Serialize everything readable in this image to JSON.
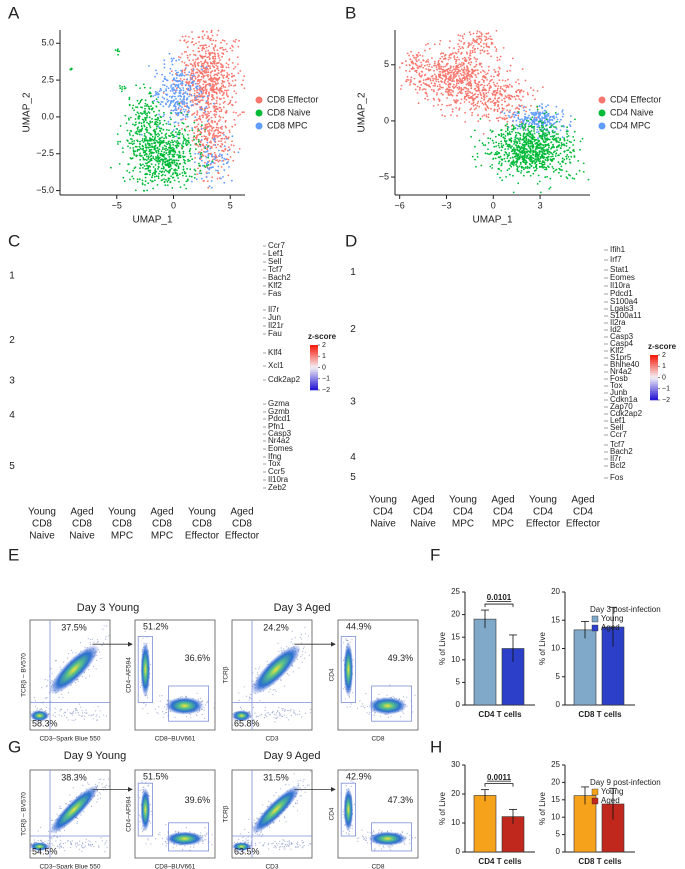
{
  "panel_labels": [
    "A",
    "B",
    "C",
    "D",
    "E",
    "F",
    "G",
    "H"
  ],
  "umap": [
    {
      "type": "scatter",
      "x_label": "UMAP_1",
      "y_label": "UMAP_2",
      "xlim": [
        -10,
        6.3
      ],
      "ylim": [
        -5.3,
        5.9
      ],
      "xticks": [
        {
          "value": -5,
          "label": "−5"
        },
        0,
        5
      ],
      "yticks": [
        {
          "value": -5,
          "label": "−5.0"
        },
        {
          "value": -2.5,
          "label": "−2.5"
        },
        {
          "value": 0,
          "label": "0.0"
        },
        {
          "value": 2.5,
          "label": "2.5"
        },
        {
          "value": 5,
          "label": "5.0"
        }
      ],
      "legend": [
        {
          "name": "CD8 Effector",
          "color": "#f8766d"
        },
        {
          "name": "CD8 Naive",
          "color": "#00ba38"
        },
        {
          "name": "CD8 MPC",
          "color": "#619cff"
        }
      ]
    },
    {
      "type": "scatter",
      "x_label": "UMAP_1",
      "y_label": "UMAP_2",
      "xlim": [
        -6.3,
        6.2
      ],
      "ylim": [
        -6.6,
        8.1
      ],
      "xticks": [
        {
          "value": -6,
          "label": "−6"
        },
        {
          "value": -3,
          "label": "−3"
        },
        0,
        3
      ],
      "yticks": [
        {
          "value": -5,
          "label": "−5"
        },
        0,
        5
      ],
      "legend": [
        {
          "name": "CD4 Effector",
          "color": "#f8766d"
        },
        {
          "name": "CD4 Naive",
          "color": "#00ba38"
        },
        {
          "name": "CD4 MPC",
          "color": "#619cff"
        }
      ]
    }
  ],
  "heatmaps": [
    {
      "clusters": [
        "1",
        "2",
        "3",
        "4",
        "5"
      ],
      "genes": [
        "Ccr7",
        "Lef1",
        "Sell",
        "Tcf7",
        "Bach2",
        "Klf2",
        "Fas",
        "Il7r",
        "Jun",
        "Il21r",
        "Fau",
        "Klf4",
        "Xcl1",
        "Cdk2ap2",
        "Gzma",
        "Gzmb",
        "Pdcd1",
        "Pfn1",
        "Casp3",
        "Nr4a2",
        "Eomes",
        "Ifng",
        "Tox",
        "Ccr5",
        "Il10ra",
        "Zeb2"
      ],
      "columns": [
        [
          "Young",
          "CD8",
          "Naive"
        ],
        [
          "Aged",
          "CD8",
          "Naive"
        ],
        [
          "Young",
          "CD8",
          "MPC"
        ],
        [
          "Aged",
          "CD8",
          "MPC"
        ],
        [
          "Young",
          "CD8",
          "Effector"
        ],
        [
          "Aged",
          "CD8",
          "Effector"
        ]
      ],
      "legend_title": "z-score",
      "legend_ticks": [
        2,
        1,
        0,
        {
          "value": -1,
          "label": "−1"
        },
        {
          "value": -2,
          "label": "−2"
        }
      ]
    },
    {
      "clusters": [
        "1",
        "2",
        "3",
        "4",
        "5"
      ],
      "genes": [
        "Ifih1",
        "Irf7",
        "Stat1",
        "Eomes",
        "Il10ra",
        "Pdcd1",
        "S100a4",
        "Lgals3",
        "S100a11",
        "Il2ra",
        "Id2",
        "Casp3",
        "Casp4",
        "Klf2",
        "S1pr5",
        "Bhlhe40",
        "Nr4a2",
        "Fosb",
        "Tox",
        "Junb",
        "Cdkn1a",
        "Zap70",
        "Cdk2ap2",
        "Lef1",
        "Sell",
        "Ccr7",
        "Tcf7",
        "Bach2",
        "Il7r",
        "Bcl2",
        "Fos"
      ],
      "columns": [
        [
          "Young",
          "CD4",
          "Naive"
        ],
        [
          "Aged",
          "CD4",
          "Naive"
        ],
        [
          "Young",
          "CD4",
          "MPC"
        ],
        [
          "Aged",
          "CD4",
          "MPC"
        ],
        [
          "Young",
          "CD4",
          "Effector"
        ],
        [
          "Aged",
          "CD4",
          "Effector"
        ]
      ],
      "legend_title": "z-score",
      "legend_ticks": [
        2,
        1,
        0,
        {
          "value": -1,
          "label": "−1"
        },
        {
          "value": -2,
          "label": "−2"
        }
      ]
    }
  ],
  "flow": [
    {
      "titles": [
        "Day 3 Young",
        "Day 3 Aged"
      ],
      "plots": [
        {
          "x_label": "CD3–Spark Blue 550",
          "y_label": "TCRβ – BV570",
          "gates": [
            "37.5%",
            "58.3%"
          ]
        },
        {
          "x_label": "CD8–BUV661",
          "y_label": "CD4–AF594",
          "gates": [
            "51.2%",
            "36.6%"
          ]
        },
        {
          "x_label": "CD3",
          "y_label": "TCRβ",
          "gates": [
            "24.2%",
            "65.8%"
          ]
        },
        {
          "x_label": "CD8",
          "y_label": "CD4",
          "gates": [
            "44.9%",
            "49.3%"
          ]
        }
      ]
    },
    {
      "titles": [
        "Day 9 Young",
        "Day 9 Aged"
      ],
      "plots": [
        {
          "x_label": "CD3–Spark Blue 550",
          "y_label": "TCRβ – BV570",
          "gates": [
            "38.3%",
            "54.5%"
          ]
        },
        {
          "x_label": "CD8–BUV661",
          "y_label": "CD4–AF594",
          "gates": [
            "51.5%",
            "39.6%"
          ]
        },
        {
          "x_label": "CD3",
          "y_label": "TCRβ",
          "gates": [
            "31.5%",
            "63.5%"
          ]
        },
        {
          "x_label": "CD8",
          "y_label": "CD4",
          "gates": [
            "42.9%",
            "47.3%"
          ]
        }
      ]
    }
  ],
  "bars": [
    {
      "legend_title": "Day 3 post-infection",
      "legend": [
        {
          "name": "Young",
          "color": "#7fa8c9"
        },
        {
          "name": "Aged",
          "color": "#2c3fc8"
        }
      ],
      "charts": [
        {
          "type": "bar",
          "x_label": "CD4 T cells",
          "y_label": "% of Live",
          "values": [
            19,
            12.5
          ],
          "errors": [
            2,
            3
          ],
          "annotation": "0.0101",
          "ylim": [
            0,
            25
          ],
          "yticks": [
            0,
            5,
            10,
            15,
            20,
            25
          ]
        },
        {
          "type": "bar",
          "x_label": "CD8 T cells",
          "y_label": "% of Live",
          "values": [
            13.3,
            13.8
          ],
          "errors": [
            1.5,
            3.5
          ],
          "ylim": [
            0,
            20
          ],
          "yticks": [
            0,
            5,
            10,
            15,
            20
          ]
        }
      ]
    },
    {
      "legend_title": "Day 9 post-infection",
      "legend": [
        {
          "name": "Young",
          "color": "#f7a21b"
        },
        {
          "name": "Aged",
          "color": "#c1281d"
        }
      ],
      "charts": [
        {
          "type": "bar",
          "x_label": "CD4 T cells",
          "y_label": "% of Live",
          "values": [
            19.5,
            12.2
          ],
          "errors": [
            2,
            2.5
          ],
          "annotation": "0.0011",
          "ylim": [
            0,
            30
          ],
          "yticks": [
            0,
            10,
            20,
            30
          ]
        },
        {
          "type": "bar",
          "x_label": "CD8 T cells",
          "y_label": "% of Live",
          "values": [
            16.2,
            13.8
          ],
          "errors": [
            2.5,
            4.5
          ],
          "ylim": [
            0,
            25
          ],
          "yticks": [
            0,
            5,
            10,
            15,
            20,
            25
          ]
        }
      ]
    }
  ]
}
